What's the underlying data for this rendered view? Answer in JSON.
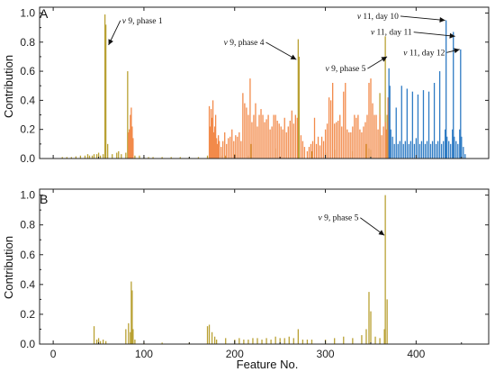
{
  "colors": {
    "frame": "#222222",
    "orange": "#F28A4A",
    "olive": "#B9A133",
    "blue": "#2E7BC4",
    "gray": "#777777"
  },
  "chart_data": [
    {
      "panel": "A",
      "type": "bar",
      "ylabel": "Contribution",
      "xlim": [
        -15,
        480
      ],
      "ylim": [
        0,
        1.04
      ],
      "yticks": [
        "0.0",
        "0.2",
        "0.4",
        "0.6",
        "0.8",
        "1.0"
      ],
      "grid": false,
      "series": [
        {
          "color_key": "olive",
          "x": [
            10,
            15,
            20,
            25,
            30,
            35,
            38,
            40,
            43,
            45,
            48,
            50,
            52,
            55,
            57,
            58,
            60,
            65,
            70,
            72,
            75,
            80,
            82,
            84,
            90,
            95,
            100,
            105,
            110,
            120,
            130,
            140,
            150,
            160,
            170,
            185,
            190,
            200,
            215,
            218,
            245,
            270,
            271,
            285,
            300,
            310,
            330,
            345,
            348,
            350,
            360,
            366,
            368
          ],
          "values": [
            0.01,
            0.01,
            0.01,
            0.015,
            0.02,
            0.02,
            0.03,
            0.02,
            0.02,
            0.03,
            0.03,
            0.04,
            0.02,
            0.03,
            0.99,
            0.92,
            0.1,
            0.03,
            0.04,
            0.05,
            0.03,
            0.04,
            0.6,
            0.2,
            0.02,
            0.02,
            0.01,
            0.01,
            0.01,
            0.01,
            0.01,
            0.01,
            0.01,
            0.01,
            0.02,
            0.02,
            0.02,
            0.03,
            0.02,
            0.1,
            0.07,
            0.82,
            0.7,
            0.05,
            0.04,
            0.06,
            0.05,
            0.1,
            0.07,
            0.06,
            0.45,
            0.84,
            0.3
          ]
        },
        {
          "color_key": "orange",
          "x": [
            83,
            84,
            85,
            86,
            87,
            88,
            172,
            173,
            174,
            175,
            176,
            177,
            178,
            179,
            180,
            181,
            182,
            183,
            185,
            187,
            189,
            191,
            193,
            195,
            197,
            199,
            201,
            203,
            205,
            207,
            209,
            211,
            213,
            215,
            217,
            219,
            221,
            223,
            225,
            227,
            229,
            231,
            233,
            235,
            237,
            239,
            241,
            243,
            245,
            247,
            249,
            251,
            253,
            255,
            257,
            259,
            261,
            263,
            265,
            267,
            269,
            273,
            275,
            277,
            280,
            282,
            284,
            286,
            288,
            290,
            292,
            294,
            296,
            298,
            300,
            302,
            304,
            306,
            308,
            310,
            312,
            314,
            316,
            318,
            320,
            322,
            324,
            326,
            328,
            330,
            332,
            334,
            336,
            338,
            340,
            342,
            344,
            346,
            348,
            350,
            352,
            354,
            356,
            358,
            360,
            362,
            364,
            366,
            367,
            369,
            370
          ],
          "values": [
            0.18,
            0.2,
            0.3,
            0.35,
            0.22,
            0.14,
            0.36,
            0.22,
            0.34,
            0.28,
            0.4,
            0.18,
            0.22,
            0.3,
            0.14,
            0.1,
            0.16,
            0.12,
            0.08,
            0.12,
            0.18,
            0.1,
            0.14,
            0.15,
            0.2,
            0.12,
            0.16,
            0.15,
            0.18,
            0.12,
            0.45,
            0.38,
            0.35,
            0.3,
            0.55,
            0.25,
            0.3,
            0.38,
            0.22,
            0.3,
            0.34,
            0.3,
            0.25,
            0.27,
            0.3,
            0.2,
            0.22,
            0.3,
            0.3,
            0.26,
            0.24,
            0.22,
            0.2,
            0.28,
            0.18,
            0.22,
            0.26,
            0.33,
            0.24,
            0.3,
            0.28,
            0.16,
            0.12,
            0.08,
            0.05,
            0.08,
            0.1,
            0.12,
            0.28,
            0.1,
            0.15,
            0.09,
            0.15,
            0.12,
            0.2,
            0.24,
            0.42,
            0.4,
            0.52,
            0.24,
            0.25,
            0.26,
            0.3,
            0.22,
            0.46,
            0.52,
            0.2,
            0.18,
            0.18,
            0.22,
            0.3,
            0.28,
            0.3,
            0.2,
            0.18,
            0.22,
            0.25,
            0.3,
            0.52,
            0.55,
            0.38,
            0.3,
            0.3,
            0.2,
            0.3,
            0.16,
            0.22,
            0.25,
            0.2,
            0.42,
            0.44
          ]
        },
        {
          "color_key": "blue",
          "x": [
            370,
            371,
            372,
            374,
            376,
            378,
            380,
            382,
            384,
            386,
            388,
            390,
            392,
            394,
            396,
            398,
            400,
            402,
            404,
            406,
            408,
            410,
            412,
            414,
            416,
            418,
            420,
            422,
            424,
            426,
            428,
            430,
            432,
            433,
            434,
            436,
            438,
            440,
            441,
            442,
            444,
            446,
            448,
            449,
            450,
            452,
            454
          ],
          "values": [
            0.62,
            0.5,
            0.2,
            0.15,
            0.1,
            0.35,
            0.1,
            0.12,
            0.5,
            0.1,
            0.12,
            0.48,
            0.1,
            0.12,
            0.46,
            0.1,
            0.14,
            0.44,
            0.1,
            0.12,
            0.47,
            0.1,
            0.12,
            0.46,
            0.1,
            0.12,
            0.52,
            0.1,
            0.12,
            0.6,
            0.1,
            0.12,
            0.2,
            0.95,
            0.15,
            0.12,
            0.1,
            0.2,
            0.87,
            0.15,
            0.12,
            0.1,
            0.2,
            0.75,
            0.15,
            0.08,
            0.03
          ]
        }
      ],
      "annotations": [
        {
          "var": "v",
          "rest": " 9, phase 1",
          "tx": 76,
          "ty": 0.93,
          "ax": 61,
          "ay": 0.78
        },
        {
          "var": "v",
          "rest": " 9, phase 4",
          "tx": 188,
          "ty": 0.78,
          "ax": 268,
          "ay": 0.68
        },
        {
          "var": "v",
          "rest": " 9, phase 5",
          "tx": 300,
          "ty": 0.6,
          "ax": 368,
          "ay": 0.7
        },
        {
          "var": "v",
          "rest": " 11, day 10",
          "tx": 335,
          "ty": 0.96,
          "ax": 432,
          "ay": 0.95
        },
        {
          "var": "v",
          "rest": " 11, day 11",
          "tx": 350,
          "ty": 0.85,
          "ax": 443,
          "ay": 0.84
        },
        {
          "var": "v",
          "rest": " 11, day 12",
          "tx": 386,
          "ty": 0.71,
          "ax": 448,
          "ay": 0.75
        }
      ]
    },
    {
      "panel": "B",
      "type": "bar",
      "xlabel": "Feature No.",
      "ylabel": "Contribution",
      "xlim": [
        -15,
        480
      ],
      "ylim": [
        0,
        1.04
      ],
      "xticks": [
        "0",
        "100",
        "200",
        "300",
        "400"
      ],
      "yticks": [
        "0.0",
        "0.2",
        "0.4",
        "0.6",
        "0.8",
        "1.0"
      ],
      "grid": false,
      "series": [
        {
          "color_key": "olive",
          "x": [
            45,
            48,
            50,
            52,
            55,
            58,
            80,
            83,
            85,
            86,
            87,
            88,
            90,
            100,
            120,
            150,
            170,
            172,
            175,
            178,
            180,
            190,
            200,
            205,
            210,
            215,
            220,
            225,
            230,
            235,
            240,
            245,
            250,
            255,
            260,
            265,
            270,
            275,
            280,
            285,
            300,
            310,
            320,
            330,
            340,
            345,
            348,
            350,
            355,
            360,
            365,
            366,
            368
          ],
          "values": [
            0.12,
            0.03,
            0.04,
            0.02,
            0.03,
            0.02,
            0.1,
            0.14,
            0.08,
            0.42,
            0.36,
            0.1,
            0.03,
            0.01,
            0.01,
            0.01,
            0.12,
            0.13,
            0.08,
            0.05,
            0.03,
            0.04,
            0.03,
            0.04,
            0.03,
            0.03,
            0.04,
            0.04,
            0.03,
            0.04,
            0.03,
            0.05,
            0.04,
            0.04,
            0.05,
            0.04,
            0.1,
            0.03,
            0.03,
            0.03,
            0.03,
            0.04,
            0.05,
            0.04,
            0.06,
            0.1,
            0.35,
            0.22,
            0.05,
            0.04,
            0.1,
            1.0,
            0.3
          ]
        }
      ],
      "annotations": [
        {
          "var": "v",
          "rest": " 9, phase 5",
          "tx": 292,
          "ty": 0.83,
          "ax": 365,
          "ay": 0.73
        }
      ]
    }
  ]
}
